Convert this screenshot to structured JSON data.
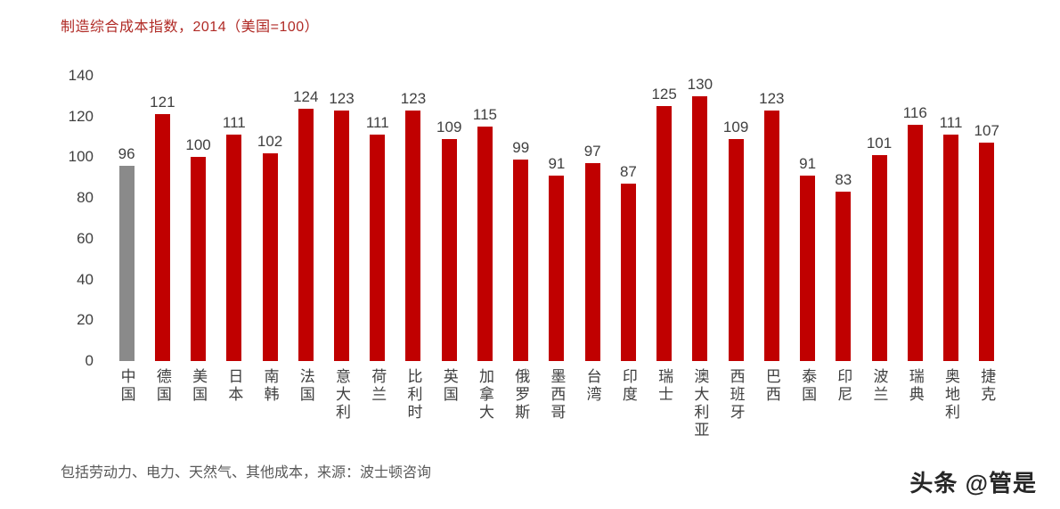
{
  "header": {
    "title": "制造综合成本指数，2014（美国=100）"
  },
  "footer": {
    "note": "包括劳动力、电力、天然气、其他成本，来源：波士顿咨询"
  },
  "watermark": {
    "text": "头条 @管是"
  },
  "colors": {
    "bar": "#c00000",
    "highlight_bar": "#8a8a8a",
    "title": "#b02a25",
    "text": "#3f3f3f"
  },
  "chart_data": {
    "type": "bar",
    "title": "制造综合成本指数，2014（美国=100）",
    "categories": [
      "中国",
      "德国",
      "美国",
      "日本",
      "南韩",
      "法国",
      "意大利",
      "荷兰",
      "比利时",
      "英国",
      "加拿大",
      "俄罗斯",
      "墨西哥",
      "台湾",
      "印度",
      "瑞士",
      "澳大利亚",
      "西班牙",
      "巴西",
      "泰国",
      "印尼",
      "波兰",
      "瑞典",
      "奥地利",
      "捷克"
    ],
    "values": [
      96,
      121,
      100,
      111,
      102,
      124,
      123,
      111,
      123,
      109,
      115,
      99,
      91,
      97,
      87,
      125,
      130,
      109,
      123,
      91,
      83,
      101,
      116,
      111,
      107
    ],
    "highlight_index": 0,
    "highlight_note": "中国 bar is gray, all others red",
    "xlabel": "",
    "ylabel": "",
    "ylim": [
      0,
      140
    ],
    "yticks": [
      0,
      20,
      40,
      60,
      80,
      100,
      120,
      140
    ],
    "grid": false,
    "data_labels": true,
    "legend": "none",
    "category_label_orientation": "vertical"
  }
}
